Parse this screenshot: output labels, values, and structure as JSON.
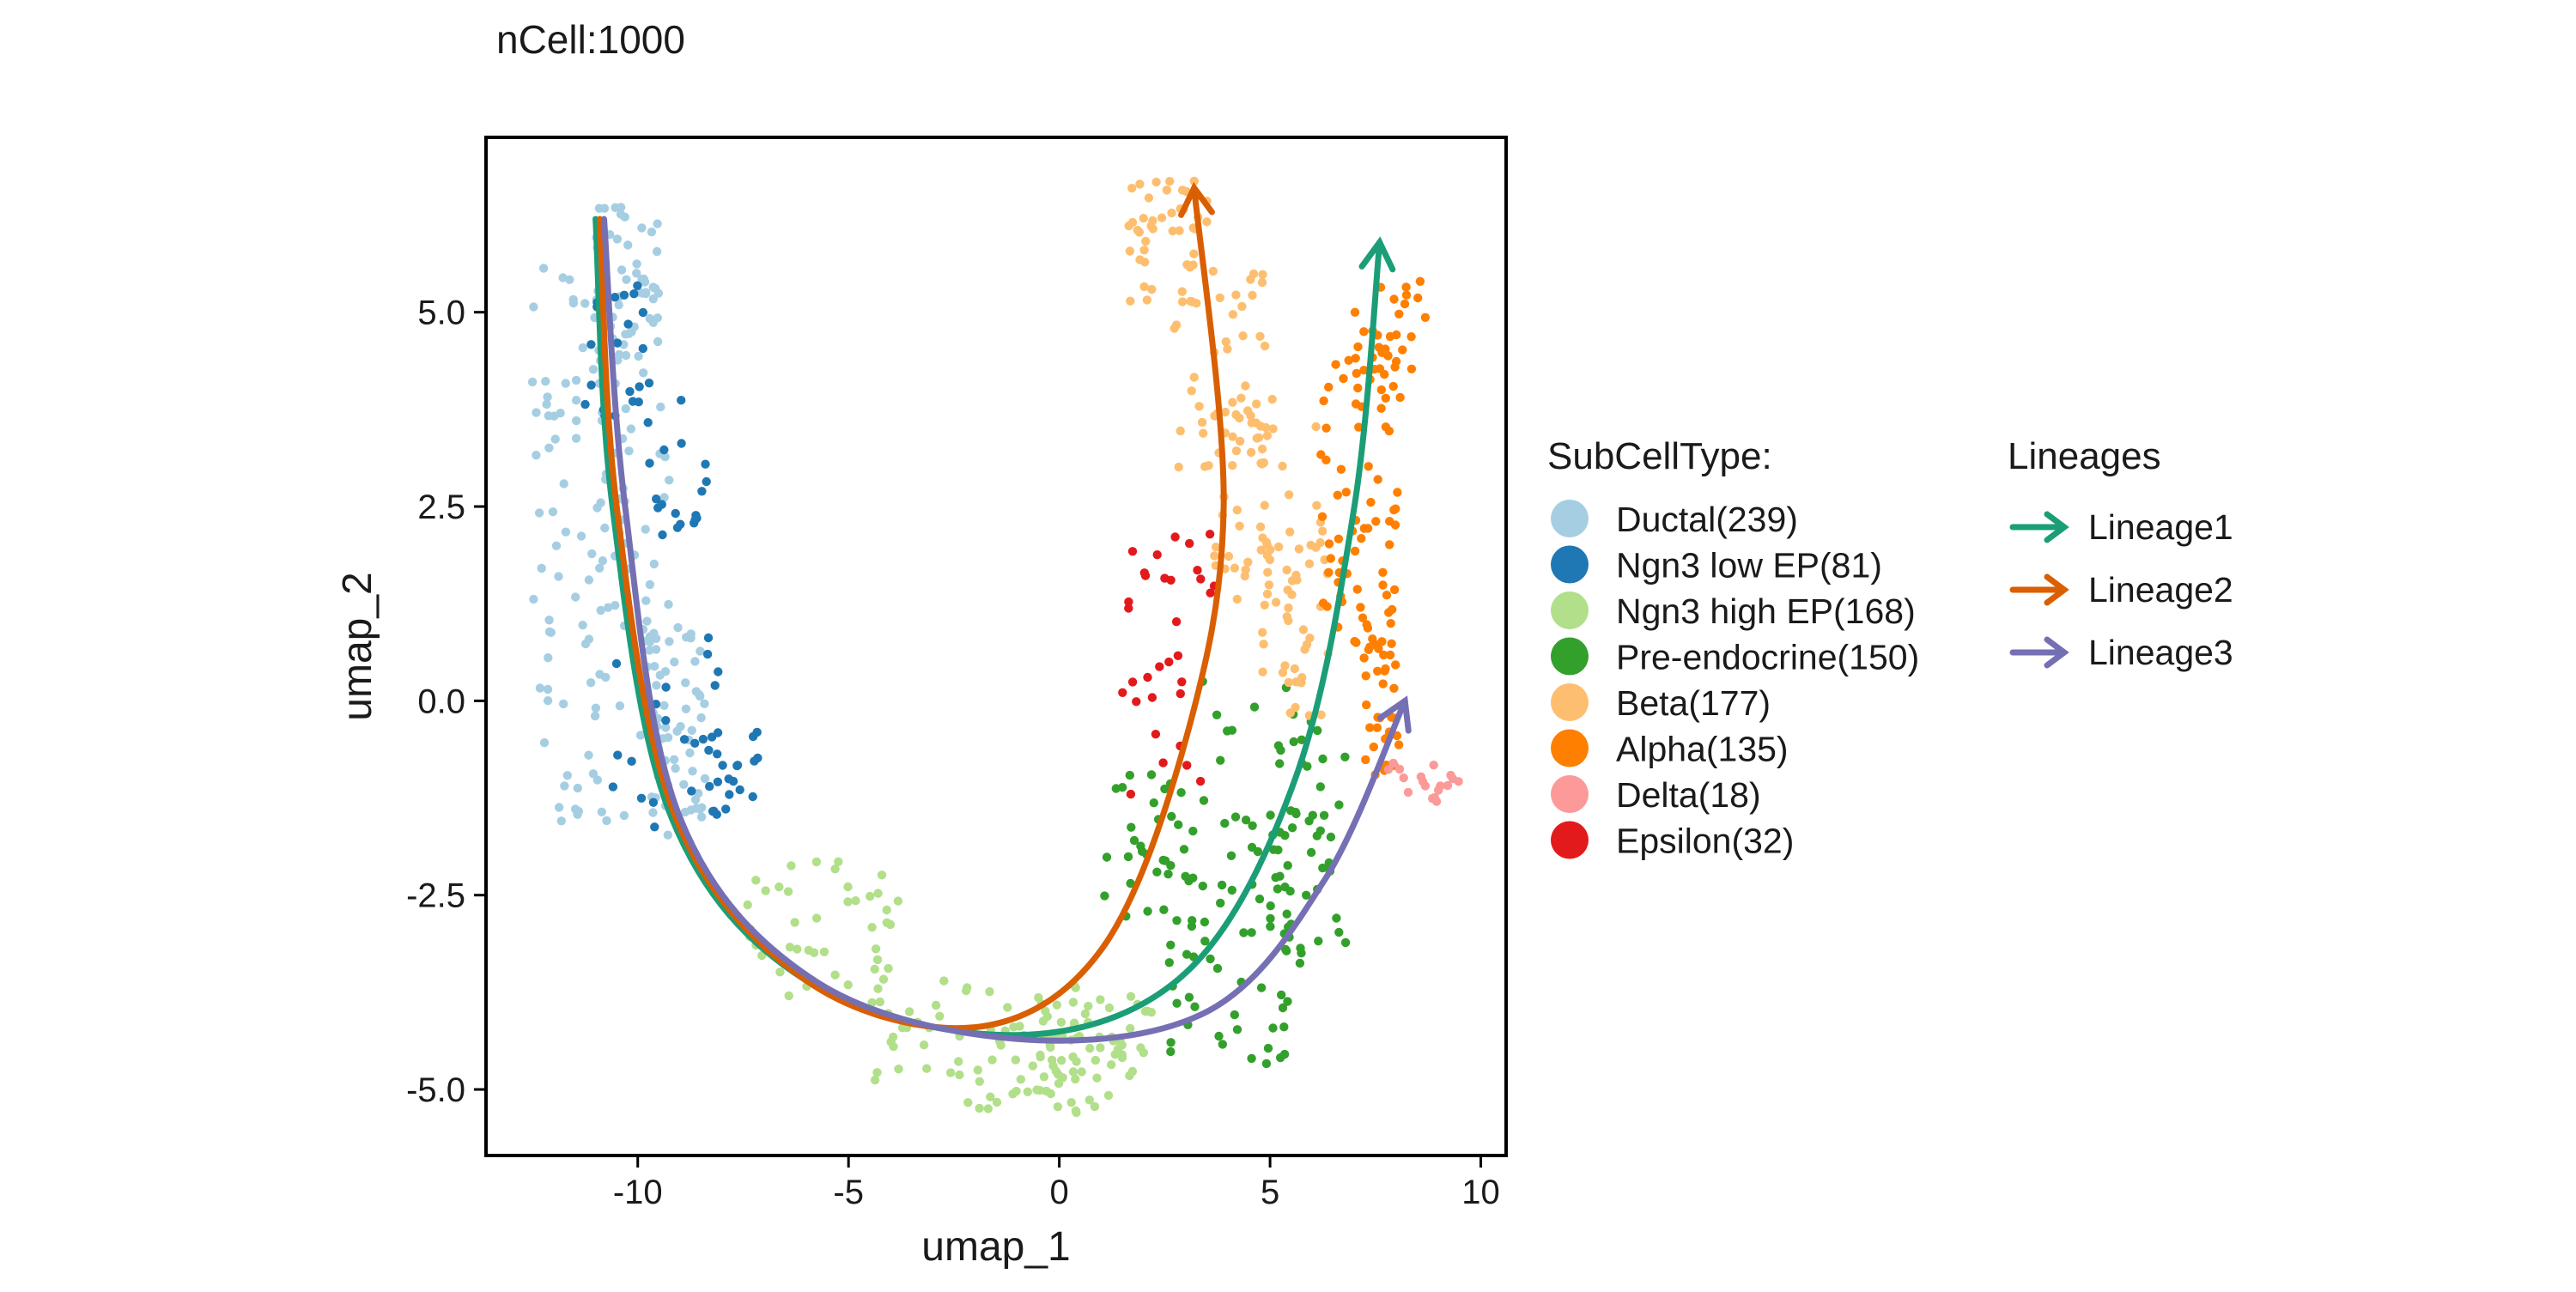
{
  "chart_data": {
    "type": "scatter",
    "title": "nCell:1000",
    "xlabel": "umap_1",
    "ylabel": "umap_2",
    "xlim": [
      -13.6,
      10.6
    ],
    "ylim": [
      -5.85,
      7.25
    ],
    "xticks": [
      -10,
      -5,
      0,
      5,
      10
    ],
    "xtick_labels": [
      "-10",
      "-5",
      "0",
      "5",
      "10"
    ],
    "yticks": [
      -5,
      -2.5,
      0,
      2.5,
      5
    ],
    "ytick_labels": [
      "-5.0",
      "-2.5",
      "0.0",
      "2.5",
      "5.0"
    ],
    "grid": false,
    "legend_position": "right",
    "celltype_legend_title": "SubCellType:",
    "lineage_legend_title": "Lineages",
    "series": [
      {
        "name": "Ductal(239)",
        "color": "#a6cee3",
        "count": 239,
        "regions": [
          {
            "x": [
              -12.5,
              -10.8
            ],
            "y": [
              -1.6,
              5.8
            ]
          },
          {
            "x": [
              -11.2,
              -9.2
            ],
            "y": [
              -1.8,
              3.8
            ]
          },
          {
            "x": [
              -11.0,
              -9.5
            ],
            "y": [
              4.0,
              6.4
            ]
          },
          {
            "x": [
              -9.8,
              -8.4
            ],
            "y": [
              -1.5,
              1.0
            ]
          }
        ]
      },
      {
        "name": "Ngn3 low EP(81)",
        "color": "#1f78b4",
        "count": 81,
        "regions": [
          {
            "x": [
              -11.3,
              -9.8
            ],
            "y": [
              3.5,
              5.4
            ]
          },
          {
            "x": [
              -10.0,
              -8.3
            ],
            "y": [
              2.0,
              4.2
            ]
          },
          {
            "x": [
              -10.6,
              -8.0
            ],
            "y": [
              -1.8,
              1.5
            ]
          },
          {
            "x": [
              -8.5,
              -7.0
            ],
            "y": [
              -1.5,
              -0.4
            ]
          }
        ]
      },
      {
        "name": "Ngn3 high EP(168)",
        "color": "#b2df8a",
        "count": 168,
        "regions": [
          {
            "x": [
              -7.5,
              -3.8
            ],
            "y": [
              -3.8,
              -2.0
            ]
          },
          {
            "x": [
              -4.6,
              0.5
            ],
            "y": [
              -5.0,
              -3.6
            ]
          },
          {
            "x": [
              -2.6,
              1.5
            ],
            "y": [
              -5.3,
              -4.3
            ]
          },
          {
            "x": [
              -0.5,
              2.2
            ],
            "y": [
              -4.9,
              -3.8
            ]
          }
        ]
      },
      {
        "name": "Pre-endocrine(150)",
        "color": "#33a02c",
        "count": 150,
        "regions": [
          {
            "x": [
              1.0,
              3.5
            ],
            "y": [
              -3.2,
              -0.9
            ]
          },
          {
            "x": [
              2.5,
              5.5
            ],
            "y": [
              -4.7,
              -2.2
            ]
          },
          {
            "x": [
              3.4,
              6.6
            ],
            "y": [
              -2.6,
              0.4
            ]
          },
          {
            "x": [
              5.0,
              6.8
            ],
            "y": [
              -3.4,
              -0.5
            ]
          }
        ]
      },
      {
        "name": "Beta(177)",
        "color": "#fdbf6f",
        "count": 177,
        "regions": [
          {
            "x": [
              1.6,
              3.6
            ],
            "y": [
              5.1,
              6.7
            ]
          },
          {
            "x": [
              2.7,
              5.0
            ],
            "y": [
              3.0,
              5.6
            ]
          },
          {
            "x": [
              3.6,
              6.2
            ],
            "y": [
              1.0,
              4.0
            ]
          },
          {
            "x": [
              4.7,
              6.4
            ],
            "y": [
              -0.2,
              2.3
            ]
          }
        ]
      },
      {
        "name": "Alpha(135)",
        "color": "#ff7f00",
        "count": 135,
        "regions": [
          {
            "x": [
              7.0,
              8.9
            ],
            "y": [
              4.0,
              5.4
            ]
          },
          {
            "x": [
              6.2,
              8.2
            ],
            "y": [
              2.0,
              4.5
            ]
          },
          {
            "x": [
              6.2,
              8.0
            ],
            "y": [
              0.6,
              2.5
            ]
          },
          {
            "x": [
              7.2,
              8.1
            ],
            "y": [
              -1.0,
              0.8
            ]
          }
        ]
      },
      {
        "name": "Delta(18)",
        "color": "#fb9a99",
        "count": 18,
        "regions": [
          {
            "x": [
              7.8,
              9.6
            ],
            "y": [
              -1.3,
              -0.8
            ]
          }
        ]
      },
      {
        "name": "Epsilon(32)",
        "color": "#e31a1c",
        "count": 32,
        "regions": [
          {
            "x": [
              1.5,
              3.7
            ],
            "y": [
              0.9,
              2.2
            ]
          },
          {
            "x": [
              1.4,
              3.5
            ],
            "y": [
              -1.3,
              0.7
            ]
          }
        ]
      }
    ],
    "lineages": [
      {
        "name": "Lineage1",
        "color": "#1b9e77",
        "points": [
          [
            -11.0,
            6.2
          ],
          [
            -10.6,
            2.5
          ],
          [
            -9.2,
            -1.5
          ],
          [
            -6.0,
            -3.6
          ],
          [
            -1.0,
            -4.3
          ],
          [
            3.0,
            -3.5
          ],
          [
            5.6,
            -1.0
          ],
          [
            7.0,
            2.5
          ],
          [
            7.6,
            5.9
          ]
        ]
      },
      {
        "name": "Lineage2",
        "color": "#d95f02",
        "points": [
          [
            -10.9,
            6.2
          ],
          [
            -10.5,
            2.5
          ],
          [
            -9.1,
            -1.5
          ],
          [
            -6.0,
            -3.6
          ],
          [
            -2.0,
            -4.2
          ],
          [
            1.0,
            -3.2
          ],
          [
            3.0,
            -0.5
          ],
          [
            3.9,
            2.5
          ],
          [
            3.2,
            6.6
          ]
        ]
      },
      {
        "name": "Lineage3",
        "color": "#7570b3",
        "points": [
          [
            -10.8,
            6.2
          ],
          [
            -10.3,
            2.5
          ],
          [
            -9.0,
            -1.5
          ],
          [
            -5.8,
            -3.6
          ],
          [
            -1.0,
            -4.35
          ],
          [
            3.5,
            -4.0
          ],
          [
            6.3,
            -2.3
          ],
          [
            8.2,
            0.0
          ]
        ]
      }
    ]
  }
}
